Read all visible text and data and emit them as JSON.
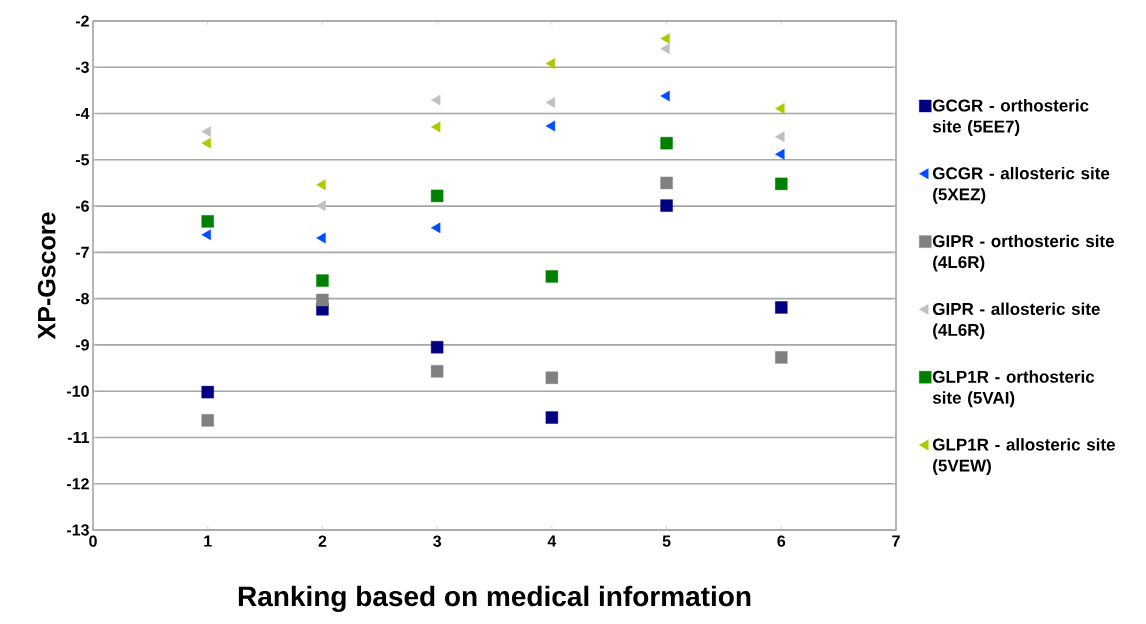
{
  "chart_data": {
    "type": "scatter",
    "xlabel": "Ranking based on medical information",
    "ylabel": "XP-Gscore",
    "x": [
      1,
      2,
      3,
      4,
      5,
      6
    ],
    "series": [
      {
        "name": "GCGR - orthosteric site (5EE7)",
        "color": "#000080",
        "marker": "square",
        "values": [
          -10.02,
          -8.23,
          -9.05,
          -10.57,
          -5.99,
          -8.19
        ]
      },
      {
        "name": "GCGR - allosteric site (5XEZ)",
        "color": "#004cff",
        "marker": "triangle",
        "values": [
          -6.62,
          -6.69,
          -6.47,
          -4.27,
          -3.62,
          -4.88
        ]
      },
      {
        "name": "GIPR - orthosteric site (4L6R)",
        "color": "#808080",
        "marker": "square",
        "values": [
          -10.63,
          -8.03,
          -9.57,
          -9.71,
          -5.5,
          -9.27
        ]
      },
      {
        "name": "GIPR - allosteric site (4L6R)",
        "color": "#c0c0c0",
        "marker": "triangle",
        "values": [
          -4.39,
          -5.99,
          -3.71,
          -3.76,
          -2.6,
          -4.5
        ]
      },
      {
        "name": "GLP1R - orthosteric site (5VAI)",
        "color": "#008000",
        "marker": "square",
        "values": [
          -6.33,
          -7.61,
          -5.78,
          -7.52,
          -4.64,
          -5.52
        ]
      },
      {
        "name": "GLP1R - allosteric site (5VEW)",
        "color": "#a8cc00",
        "marker": "triangle",
        "values": [
          -4.64,
          -5.54,
          -4.29,
          -2.92,
          -2.38,
          -3.89
        ]
      }
    ],
    "xlim": [
      0,
      7
    ],
    "ylim": [
      -13,
      -2
    ],
    "xticks": [
      0,
      1,
      2,
      3,
      4,
      5,
      6,
      7
    ],
    "yticks": [
      -13,
      -12,
      -11,
      -10,
      -9,
      -8,
      -7,
      -6,
      -5,
      -4,
      -3,
      -2
    ],
    "grid": "y",
    "legend": "right"
  }
}
